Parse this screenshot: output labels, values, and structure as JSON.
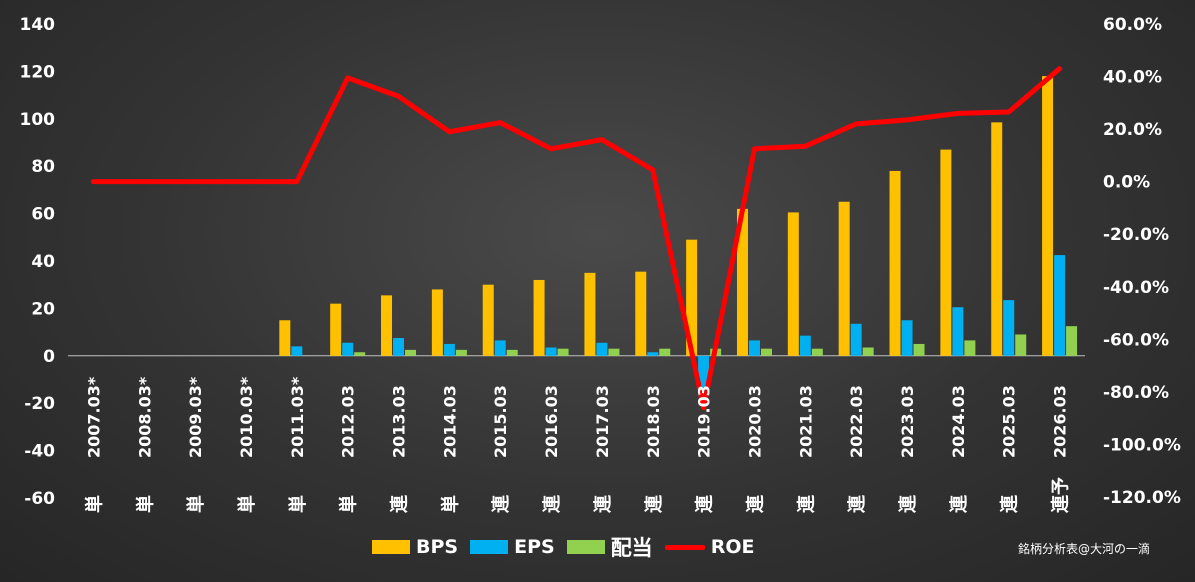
{
  "chart_data": {
    "type": "bar+line",
    "categories": [
      "2007.03*",
      "2008.03*",
      "2009.03*",
      "2010.03*",
      "2011.03*",
      "2012.03",
      "2013.03",
      "2014.03",
      "2015.03",
      "2016.03",
      "2017.03",
      "2018.03",
      "2019.03",
      "2020.03",
      "2021.03",
      "2022.03",
      "2023.03",
      "2024.03",
      "2025.03",
      "2026.03"
    ],
    "category_types": [
      "単",
      "単",
      "単",
      "単",
      "単",
      "単",
      "連",
      "単",
      "連",
      "連",
      "連",
      "連",
      "連",
      "連",
      "連",
      "連",
      "連",
      "連",
      "連",
      "連予"
    ],
    "series": [
      {
        "name": "BPS",
        "type": "bar",
        "axis": "left",
        "color": "#FFC000",
        "values": [
          0,
          0,
          0,
          0,
          15,
          22,
          25.5,
          28,
          30,
          32,
          35,
          35.5,
          49,
          62,
          60.5,
          65,
          78,
          87,
          98.5,
          118
        ]
      },
      {
        "name": "EPS",
        "type": "bar",
        "axis": "left",
        "color": "#00B0F0",
        "values": [
          0,
          0,
          0,
          0,
          4,
          5.5,
          7.5,
          5,
          6.5,
          3.5,
          5.5,
          1.5,
          -17,
          6.5,
          8.5,
          13.5,
          15,
          20.5,
          23.5,
          42.5
        ]
      },
      {
        "name": "配当",
        "type": "bar",
        "axis": "left",
        "color": "#92D050",
        "values": [
          0,
          0,
          0,
          0,
          0,
          1.5,
          2.5,
          2.5,
          2.5,
          3,
          3,
          3,
          3,
          3,
          3,
          3.5,
          5,
          6.5,
          9,
          12.5
        ]
      },
      {
        "name": "ROE",
        "type": "line",
        "axis": "right",
        "color": "#FF0000",
        "values": [
          0,
          0,
          0,
          0,
          0,
          39.5,
          32.5,
          19,
          22.5,
          12.5,
          16,
          4.5,
          -86,
          12.5,
          13.5,
          22,
          23.5,
          26,
          26.5,
          43
        ]
      }
    ],
    "left_axis": {
      "min": -60,
      "max": 140,
      "step": 20,
      "tick_labels": [
        "140",
        "120",
        "100",
        "80",
        "60",
        "40",
        "20",
        "0",
        "-20",
        "-40",
        "-60"
      ]
    },
    "right_axis": {
      "min": -120,
      "max": 60,
      "step": 20,
      "tick_labels": [
        "60.0%",
        "40.0%",
        "20.0%",
        "0.0%",
        "-20.0%",
        "-40.0%",
        "-60.0%",
        "-80.0%",
        "-100.0%",
        "-120.0%"
      ]
    },
    "legend_position": "bottom"
  },
  "legend": {
    "bps": "BPS",
    "eps": "EPS",
    "dividend": "配当",
    "roe": "ROE"
  },
  "credit": "銘柄分析表@大河の一滴"
}
